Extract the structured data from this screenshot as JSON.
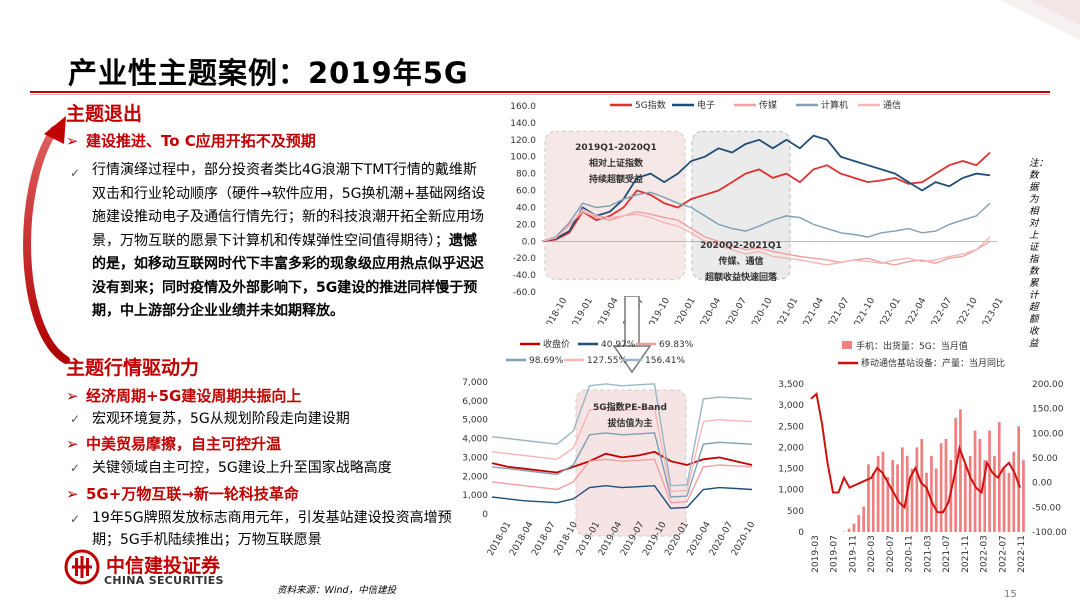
{
  "title": "产业性主题案例：2019年5G",
  "page_number": "15",
  "left": {
    "section1": {
      "heading": "主题退出",
      "subheading": "建设推进、To C应用开拓不及预期",
      "paragraph_plain": "行情演绎过程中，部分投资者类比4G浪潮下TMT行情的戴维斯双击和行业轮动顺序（硬件→软件应用，5G换机潮+基础网络设施建设推动电子及通信行情先行；新的科技浪潮开拓全新应用场景，万物互联的愿景下计算机和传媒弹性空间值得期待）；",
      "paragraph_bold": "遗憾的是，如移动互联网时代下丰富多彩的现象级应用热点似乎迟迟没有到来；同时疫情及外部影响下，5G建设的推进同样慢于预期，中上游部分企业业绩并未如期释放。"
    },
    "section2": {
      "heading": "主题行情驱动力",
      "items": [
        {
          "sub": "经济周期+5G建设周期共振向上",
          "text": "宏观环境复苏，5G从规划阶段走向建设期"
        },
        {
          "sub": "中美贸易摩擦，自主可控升温",
          "text": "关键领域自主可控，5G建设上升至国家战略高度"
        },
        {
          "sub": "5G+万物互联→新一轮科技革命",
          "text": "19年5G牌照发放标志商用元年，引发基站建设投资高增预期；5G手机陆续推出；万物互联愿景"
        }
      ]
    }
  },
  "logo": {
    "cn": "中信建投证券",
    "en": "CHINA SECURITIES"
  },
  "source": "资料来源：Wind，中信建投",
  "note": "注：数据为相对上证指数累计超额收益",
  "icons": {
    "arrow_bullet": "arrow-bullet-icon",
    "check": "check-icon"
  },
  "colors": {
    "brand_red": "#c00000",
    "navy": "#1f4e79",
    "steel": "#7f9fb3",
    "pink": "#f4a6a6"
  },
  "chart_data": [
    {
      "type": "line",
      "legend": [
        "5G指数",
        "电子",
        "传媒",
        "计算机",
        "通信"
      ],
      "y_ticks": [
        "160.0",
        "140.0",
        "120.0",
        "100.0",
        "80.0",
        "60.0",
        "40.0",
        "20.0",
        "0.0",
        "-20.0",
        "-40.0",
        "-60.0"
      ],
      "ylim": [
        -60,
        160
      ],
      "x_ticks": [
        "2018-10",
        "2019-01",
        "2019-04",
        "2019-07",
        "2019-10",
        "2020-01",
        "2020-04",
        "2020-07",
        "2020-10",
        "2021-01",
        "2021-04",
        "2021-07",
        "2021-10",
        "2022-01",
        "2022-04",
        "2022-07",
        "2022-10",
        "2023-01"
      ],
      "annotations": [
        {
          "text": "2019Q1-2020Q1\n相对上证指数\n持续超额受益"
        },
        {
          "text": "2020Q2-2021Q1\n传媒、通信\n超额收益快速回落"
        }
      ],
      "series": [
        {
          "name": "5G指数",
          "values": [
            0,
            2,
            10,
            35,
            25,
            30,
            40,
            60,
            55,
            45,
            40,
            50,
            55,
            60,
            70,
            80,
            85,
            75,
            80,
            70,
            85,
            90,
            80,
            75,
            70,
            72,
            75,
            68,
            70,
            80,
            90,
            95,
            90,
            105
          ]
        },
        {
          "name": "电子",
          "values": [
            0,
            3,
            12,
            40,
            30,
            35,
            50,
            75,
            80,
            70,
            80,
            95,
            100,
            110,
            105,
            115,
            120,
            110,
            120,
            110,
            125,
            120,
            100,
            95,
            90,
            85,
            80,
            70,
            60,
            70,
            65,
            75,
            80,
            78
          ]
        },
        {
          "name": "传媒",
          "values": [
            0,
            4,
            20,
            35,
            28,
            25,
            30,
            35,
            32,
            28,
            25,
            15,
            5,
            0,
            -5,
            -10,
            -8,
            -12,
            -15,
            -18,
            -20,
            -22,
            -25,
            -22,
            -20,
            -25,
            -28,
            -24,
            -22,
            -26,
            -20,
            -18,
            -10,
            0
          ]
        },
        {
          "name": "计算机",
          "values": [
            0,
            5,
            22,
            45,
            40,
            42,
            50,
            55,
            58,
            52,
            45,
            40,
            30,
            20,
            15,
            12,
            18,
            25,
            30,
            28,
            20,
            15,
            10,
            8,
            5,
            10,
            12,
            15,
            10,
            12,
            20,
            25,
            30,
            45
          ]
        },
        {
          "name": "通信",
          "values": [
            0,
            4,
            18,
            38,
            30,
            28,
            30,
            32,
            28,
            22,
            18,
            10,
            0,
            -5,
            -10,
            -15,
            -12,
            -18,
            -20,
            -22,
            -25,
            -28,
            -25,
            -22,
            -24,
            -26,
            -22,
            -20,
            -24,
            -22,
            -18,
            -15,
            -10,
            5
          ]
        }
      ]
    },
    {
      "type": "line",
      "legend": [
        "收盘价",
        "40.97%",
        "69.83%",
        "98.69%",
        "127.55%",
        "156.41%"
      ],
      "y_ticks": [
        "7,000",
        "6,000",
        "5,000",
        "4,000",
        "3,000",
        "2,000",
        "1,000",
        "0"
      ],
      "ylim": [
        0,
        7000
      ],
      "x_ticks": [
        "2018-01",
        "2018-04",
        "2018-07",
        "2018-10",
        "2019-01",
        "2019-04",
        "2019-07",
        "2019-10",
        "2020-01",
        "2020-04",
        "2020-07",
        "2020-10"
      ],
      "annotations": [
        {
          "text": "5G指数PE-Band\n拔估值为主"
        }
      ],
      "series": [
        {
          "name": "收盘价",
          "values": [
            2700,
            2500,
            2400,
            2300,
            2200,
            2500,
            2800,
            3200,
            3000,
            3100,
            3300,
            2800,
            2600,
            2900,
            3000,
            2800,
            2600
          ]
        },
        {
          "name": "40.97%",
          "values": [
            900,
            800,
            700,
            650,
            600,
            800,
            1400,
            1500,
            1400,
            1450,
            1500,
            300,
            350,
            1300,
            1400,
            1350,
            1300
          ]
        },
        {
          "name": "69.83%",
          "values": [
            1700,
            1600,
            1500,
            1400,
            1300,
            1700,
            2800,
            2900,
            2800,
            2850,
            2900,
            600,
            650,
            2500,
            2600,
            2550,
            2500
          ]
        },
        {
          "name": "98.69%",
          "values": [
            2500,
            2400,
            2300,
            2200,
            2100,
            2600,
            4200,
            4300,
            4200,
            4250,
            4300,
            900,
            950,
            3700,
            3800,
            3750,
            3700
          ]
        },
        {
          "name": "127.55%",
          "values": [
            3300,
            3200,
            3100,
            3000,
            2900,
            3500,
            5500,
            5600,
            5500,
            5550,
            5600,
            1200,
            1250,
            4900,
            5000,
            4950,
            4900
          ]
        },
        {
          "name": "156.41%",
          "values": [
            4100,
            4000,
            3900,
            3800,
            3700,
            4400,
            6800,
            6900,
            6800,
            6850,
            6900,
            1500,
            1550,
            6100,
            6200,
            6150,
            6100
          ]
        }
      ]
    },
    {
      "type": "bar",
      "legend": [
        "手机：出货量：5G：当月值",
        "移动通信基站设备：产量：当月同比"
      ],
      "y_ticks_left": [
        "3,500",
        "3,000",
        "2,500",
        "2,000",
        "1,500",
        "1,000",
        "500",
        "0"
      ],
      "y_ticks_right": [
        "200.00",
        "150.00",
        "100.00",
        "50.00",
        "0.00",
        "-50.00",
        "-100.00"
      ],
      "ylim_left": [
        0,
        3500
      ],
      "ylim_right": [
        -100,
        200
      ],
      "x_ticks": [
        "2019-03",
        "2019-07",
        "2019-11",
        "2020-03",
        "2020-07",
        "2020-11",
        "2021-03",
        "2021-07",
        "2021-11",
        "2022-03",
        "2022-07",
        "2022-11"
      ],
      "series": [
        {
          "name": "手机：出货量：5G：当月值",
          "values": [
            0,
            0,
            0,
            0,
            0,
            0,
            0,
            10,
            80,
            200,
            400,
            600,
            1600,
            1400,
            1800,
            1900,
            1300,
            1700,
            1600,
            2000,
            1800,
            1500,
            2000,
            2200,
            1400,
            1800,
            1500,
            2100,
            2200,
            1700,
            2700,
            2900,
            1600,
            1800,
            2400,
            2200,
            1700,
            2400,
            1800,
            2600,
            1500,
            1400,
            1900,
            2500,
            1700
          ]
        },
        {
          "name": "移动通信基站设备：产量：当月同比",
          "values": [
            170,
            180,
            120,
            40,
            -20,
            -20,
            10,
            -10,
            -5,
            0,
            5,
            10,
            30,
            20,
            0,
            -20,
            -40,
            -50,
            10,
            30,
            0,
            -10,
            -40,
            -60,
            -60,
            -40,
            10,
            70,
            40,
            10,
            -10,
            -20,
            40,
            20,
            10,
            30,
            40,
            20,
            -10
          ]
        }
      ]
    }
  ]
}
